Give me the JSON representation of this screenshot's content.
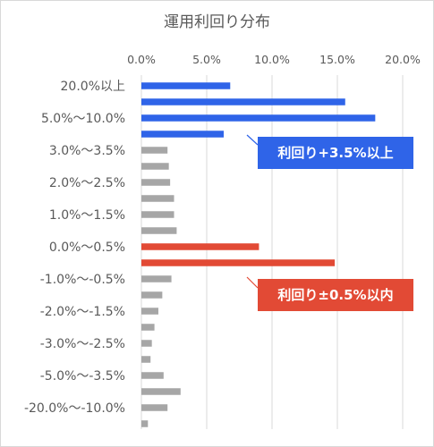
{
  "chart_data": {
    "type": "bar",
    "orientation": "horizontal",
    "title": "運用利回り分布",
    "xlabel": "",
    "ylabel": "",
    "xlim": [
      0,
      20
    ],
    "x_ticks": [
      "0.0%",
      "5.0%",
      "10.0%",
      "15.0%",
      "20.0%"
    ],
    "grid": true,
    "categories": [
      "20.0%以上",
      "",
      "5.0%～10.0%",
      "",
      "3.0%～3.5%",
      "",
      "2.0%～2.5%",
      "",
      "1.0%～1.5%",
      "",
      "0.0%～0.5%",
      "",
      "-1.0%～-0.5%",
      "",
      "-2.0%～-1.5%",
      "",
      "-3.0%～-2.5%",
      "",
      "-5.0%～-3.5%",
      "",
      "-20.0%～-10.0%",
      ""
    ],
    "values": [
      6.8,
      15.6,
      17.9,
      6.3,
      2.0,
      2.1,
      2.2,
      2.5,
      2.5,
      2.7,
      9.0,
      14.8,
      2.3,
      1.6,
      1.3,
      1.0,
      0.8,
      0.7,
      1.7,
      3.0,
      2.0,
      0.5
    ],
    "bar_colors": [
      "blue",
      "blue",
      "blue",
      "blue",
      "gray",
      "gray",
      "gray",
      "gray",
      "gray",
      "gray",
      "red",
      "red",
      "gray",
      "gray",
      "gray",
      "gray",
      "gray",
      "gray",
      "gray",
      "gray",
      "gray",
      "gray"
    ],
    "colors": {
      "blue": "#2f64e8",
      "red": "#e24a35",
      "gray": "#a6a6a6"
    },
    "annotations": [
      {
        "text": "利回り+3.5%以上",
        "color": "#2f64e8"
      },
      {
        "text": "利回り±0.5%以内",
        "color": "#e24a35"
      }
    ]
  }
}
